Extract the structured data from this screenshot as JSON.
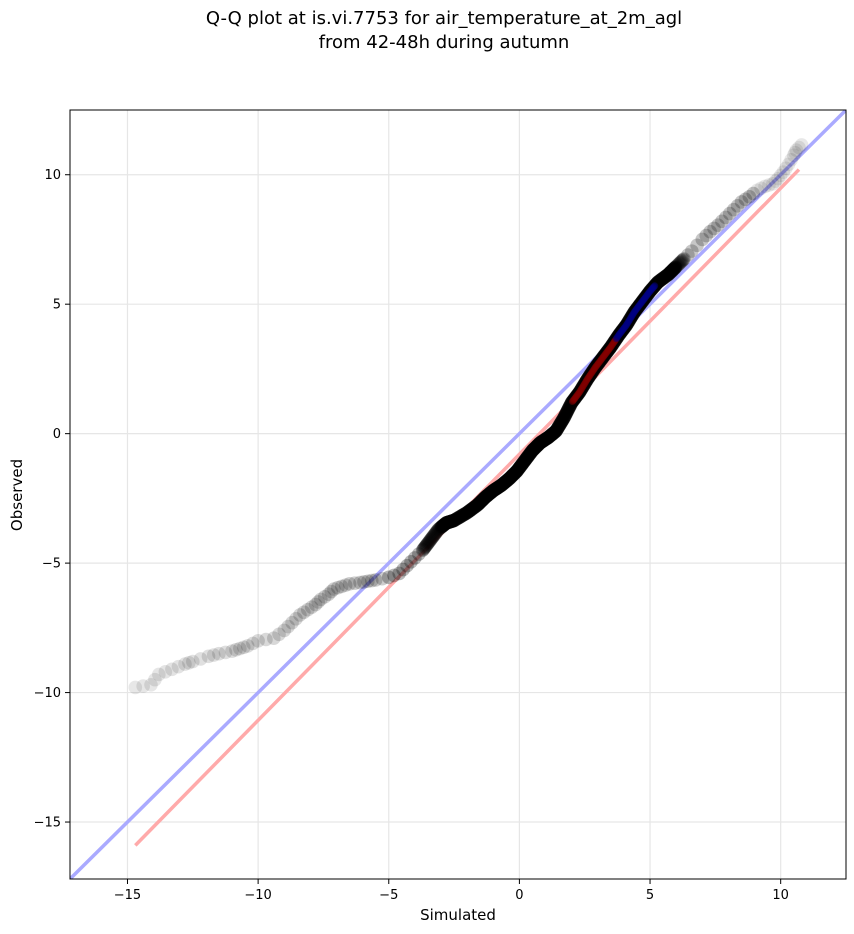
{
  "chart_data": {
    "type": "scatter",
    "title_lines": [
      "Q-Q plot at is.vi.7753 for air_temperature_at_2m_agl",
      "from 42-48h during autumn"
    ],
    "xlabel": "Simulated",
    "ylabel": "Observed",
    "xlim": [
      -17.2,
      12.5
    ],
    "ylim": [
      -17.2,
      12.5
    ],
    "xticks": [
      -15,
      -10,
      -5,
      0,
      5,
      10
    ],
    "yticks": [
      -15,
      -10,
      -5,
      0,
      5,
      10
    ],
    "xtick_labels": [
      "−15",
      "−10",
      "−5",
      "0",
      "5",
      "10"
    ],
    "ytick_labels": [
      "−15",
      "−10",
      "−5",
      "0",
      "5",
      "10"
    ],
    "grid": true,
    "colors": {
      "identity_line": "#aaaaff",
      "fit_line": "#ffaaaa",
      "points": "#000000",
      "center_red": "#8b0000",
      "center_blue": "#00008b"
    },
    "reference_lines": [
      {
        "kind": "identity",
        "x": [
          -17.2,
          12.5
        ],
        "y": [
          -17.2,
          12.5
        ]
      },
      {
        "kind": "fit",
        "x": [
          -14.7,
          10.7
        ],
        "y": [
          -15.9,
          10.2
        ]
      }
    ],
    "quantile_curve": {
      "x": [
        -14.7,
        -14.1,
        -13.8,
        -13.3,
        -12.8,
        -12.5,
        -11.9,
        -11.5,
        -11.0,
        -10.7,
        -10.4,
        -10.0,
        -9.4,
        -9.0,
        -8.7,
        -8.4,
        -8.1,
        -7.8,
        -7.6,
        -7.3,
        -7.1,
        -6.8,
        -6.5,
        -6.1,
        -5.8,
        -5.5,
        -5.0,
        -4.6,
        -4.3,
        -4.0,
        -3.7,
        -3.4,
        -3.1,
        -2.8,
        -2.5,
        -2.0,
        -1.6,
        -1.3,
        -1.0,
        -0.7,
        -0.4,
        -0.1,
        0.2,
        0.5,
        0.8,
        1.1,
        1.4,
        1.7,
        2.0,
        2.3,
        2.6,
        2.9,
        3.2,
        3.5,
        3.8,
        4.1,
        4.4,
        4.7,
        5.0,
        5.3,
        5.7,
        6.0,
        6.3,
        6.6,
        7.0,
        7.3,
        7.6,
        7.9,
        8.2,
        8.5,
        8.8,
        9.1,
        9.4,
        9.7,
        9.9,
        10.1,
        10.3,
        10.5,
        10.6,
        10.8
      ],
      "y": [
        -9.8,
        -9.7,
        -9.3,
        -9.1,
        -8.9,
        -8.8,
        -8.6,
        -8.5,
        -8.4,
        -8.3,
        -8.2,
        -8.0,
        -7.9,
        -7.6,
        -7.3,
        -7.0,
        -6.8,
        -6.6,
        -6.4,
        -6.2,
        -6.0,
        -5.9,
        -5.8,
        -5.75,
        -5.7,
        -5.65,
        -5.55,
        -5.4,
        -5.1,
        -4.8,
        -4.5,
        -4.1,
        -3.7,
        -3.45,
        -3.35,
        -3.05,
        -2.75,
        -2.45,
        -2.2,
        -2.0,
        -1.75,
        -1.45,
        -1.05,
        -0.65,
        -0.35,
        -0.15,
        0.1,
        0.6,
        1.2,
        1.6,
        2.1,
        2.55,
        2.95,
        3.35,
        3.8,
        4.2,
        4.7,
        5.1,
        5.5,
        5.85,
        6.15,
        6.45,
        6.75,
        7.05,
        7.5,
        7.8,
        8.05,
        8.35,
        8.65,
        8.95,
        9.15,
        9.4,
        9.55,
        9.65,
        9.85,
        10.1,
        10.4,
        10.75,
        10.95,
        11.15
      ]
    }
  }
}
